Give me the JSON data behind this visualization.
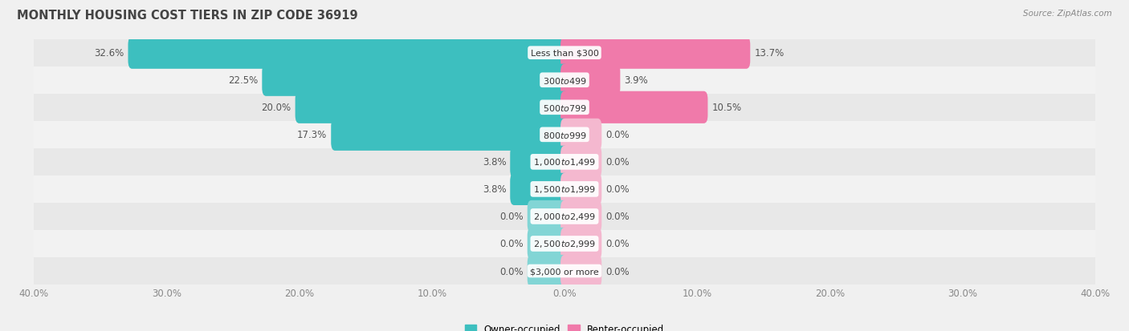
{
  "title": "MONTHLY HOUSING COST TIERS IN ZIP CODE 36919",
  "source": "Source: ZipAtlas.com",
  "categories": [
    "Less than $300",
    "$300 to $499",
    "$500 to $799",
    "$800 to $999",
    "$1,000 to $1,499",
    "$1,500 to $1,999",
    "$2,000 to $2,499",
    "$2,500 to $2,999",
    "$3,000 or more"
  ],
  "owner_values": [
    32.6,
    22.5,
    20.0,
    17.3,
    3.8,
    3.8,
    0.0,
    0.0,
    0.0
  ],
  "renter_values": [
    13.7,
    3.9,
    10.5,
    0.0,
    0.0,
    0.0,
    0.0,
    0.0,
    0.0
  ],
  "owner_color": "#3DBFBF",
  "owner_color_zero": "#82D5D5",
  "renter_color": "#F07AAA",
  "renter_color_zero": "#F4B8CF",
  "bg_color": "#f0f0f0",
  "row_colors": [
    "#e8e8e8",
    "#f2f2f2"
  ],
  "x_max": 40.0,
  "bar_height": 0.58,
  "min_stub": 2.5,
  "title_fontsize": 10.5,
  "label_fontsize": 8.5,
  "cat_fontsize": 8.0,
  "tick_fontsize": 8.5,
  "legend_fontsize": 8.5,
  "source_fontsize": 7.5
}
